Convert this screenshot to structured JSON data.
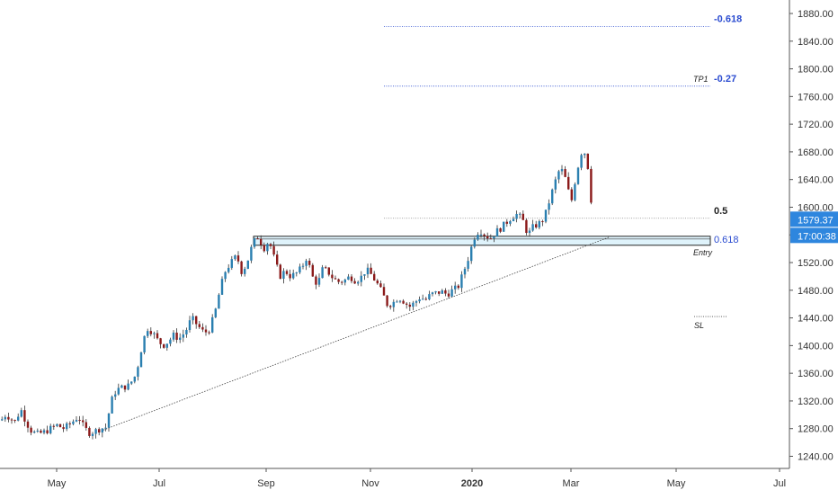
{
  "chart_data": {
    "type": "candlestick",
    "title": "",
    "xlabel": "",
    "ylabel": "",
    "ylim": [
      1222,
      1905
    ],
    "grid": false,
    "x_tick_labels": [
      "May",
      "Jul",
      "Sep",
      "Nov",
      "2020",
      "Mar",
      "May",
      "Jul"
    ],
    "y_tick_values": [
      1240,
      1280,
      1320,
      1360,
      1400,
      1440,
      1480,
      1520,
      1560,
      1600,
      1640,
      1680,
      1720,
      1760,
      1800,
      1840,
      1880
    ],
    "price_label": "1579.37",
    "countdown_label": "17:00:38",
    "approx_close_path": [
      [
        0,
        1292
      ],
      [
        5,
        1300
      ],
      [
        10,
        1296
      ],
      [
        15,
        1289
      ],
      [
        22,
        1308
      ],
      [
        28,
        1289
      ],
      [
        34,
        1276
      ],
      [
        40,
        1272
      ],
      [
        48,
        1275
      ],
      [
        55,
        1280
      ],
      [
        62,
        1285
      ],
      [
        70,
        1280
      ],
      [
        78,
        1288
      ],
      [
        86,
        1298
      ],
      [
        92,
        1282
      ],
      [
        98,
        1274
      ],
      [
        104,
        1276
      ],
      [
        110,
        1280
      ],
      [
        117,
        1282
      ],
      [
        122,
        1318
      ],
      [
        128,
        1336
      ],
      [
        136,
        1340
      ],
      [
        142,
        1342
      ],
      [
        150,
        1358
      ],
      [
        156,
        1395
      ],
      [
        162,
        1426
      ],
      [
        168,
        1420
      ],
      [
        174,
        1408
      ],
      [
        180,
        1400
      ],
      [
        186,
        1406
      ],
      [
        192,
        1415
      ],
      [
        198,
        1410
      ],
      [
        205,
        1420
      ],
      [
        212,
        1440
      ],
      [
        218,
        1430
      ],
      [
        226,
        1418
      ],
      [
        232,
        1424
      ],
      [
        238,
        1448
      ],
      [
        244,
        1484
      ],
      [
        250,
        1510
      ],
      [
        256,
        1520
      ],
      [
        262,
        1530
      ],
      [
        268,
        1505
      ],
      [
        274,
        1522
      ],
      [
        280,
        1548
      ],
      [
        286,
        1558
      ],
      [
        292,
        1540
      ],
      [
        298,
        1552
      ],
      [
        304,
        1525
      ],
      [
        310,
        1500
      ],
      [
        316,
        1508
      ],
      [
        322,
        1500
      ],
      [
        328,
        1504
      ],
      [
        334,
        1512
      ],
      [
        340,
        1528
      ],
      [
        346,
        1500
      ],
      [
        352,
        1488
      ],
      [
        358,
        1512
      ],
      [
        364,
        1506
      ],
      [
        370,
        1496
      ],
      [
        376,
        1492
      ],
      [
        382,
        1494
      ],
      [
        388,
        1500
      ],
      [
        394,
        1494
      ],
      [
        400,
        1498
      ],
      [
        406,
        1510
      ],
      [
        412,
        1502
      ],
      [
        418,
        1490
      ],
      [
        424,
        1476
      ],
      [
        430,
        1458
      ],
      [
        436,
        1462
      ],
      [
        442,
        1470
      ],
      [
        448,
        1464
      ],
      [
        454,
        1456
      ],
      [
        460,
        1462
      ],
      [
        466,
        1470
      ],
      [
        472,
        1466
      ],
      [
        478,
        1474
      ],
      [
        484,
        1476
      ],
      [
        490,
        1478
      ],
      [
        496,
        1474
      ],
      [
        502,
        1480
      ],
      [
        508,
        1484
      ],
      [
        514,
        1505
      ],
      [
        520,
        1528
      ],
      [
        526,
        1556
      ],
      [
        532,
        1568
      ],
      [
        538,
        1560
      ],
      [
        544,
        1555
      ],
      [
        550,
        1564
      ],
      [
        556,
        1570
      ],
      [
        562,
        1578
      ],
      [
        568,
        1586
      ],
      [
        574,
        1590
      ],
      [
        580,
        1582
      ],
      [
        586,
        1560
      ],
      [
        592,
        1572
      ],
      [
        598,
        1576
      ],
      [
        604,
        1584
      ],
      [
        610,
        1610
      ],
      [
        616,
        1636
      ],
      [
        622,
        1658
      ],
      [
        628,
        1640
      ],
      [
        634,
        1606
      ],
      [
        640,
        1650
      ],
      [
        646,
        1682
      ],
      [
        650,
        1678
      ],
      [
        654,
        1648
      ],
      [
        658,
        1580
      ]
    ],
    "annotations": {
      "fib_-0.618": {
        "label": "-0.618",
        "value": 1861
      },
      "fib_-0.27": {
        "label": "-0.27",
        "value": 1775
      },
      "fib_0.5": {
        "label": "0.5",
        "value": 1584
      },
      "fib_0.618": {
        "label": "0.618",
        "value": 1554
      },
      "tp1": {
        "label": "TP1"
      },
      "entry": {
        "label": "Entry"
      },
      "sl": {
        "label": "SL",
        "value": 1442
      },
      "entry_zone": {
        "low": 1545,
        "high": 1558
      },
      "trendline": {
        "start_value": 1278,
        "end_value": 1554
      }
    },
    "colors": {
      "up_candle": "#2a7fb0",
      "down_candle": "#8b1a1a",
      "wick": "#333333",
      "level_line": "#2a4bd0",
      "level_label": "#2a4bd0",
      "zone_fill": "#dff3fb",
      "price_badge": "#2e86de"
    }
  }
}
